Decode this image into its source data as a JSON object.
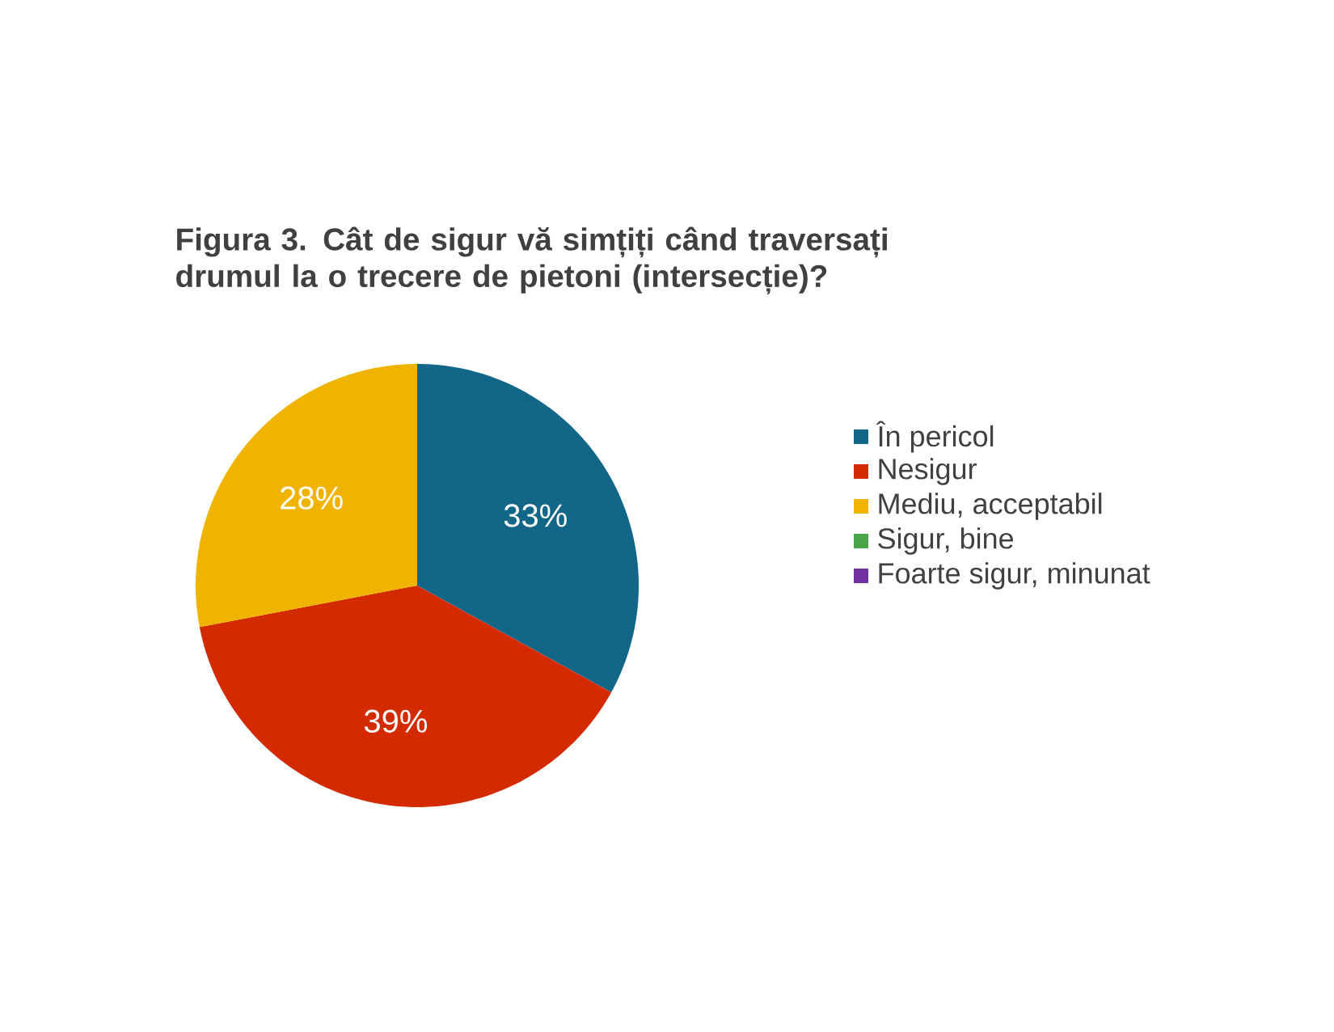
{
  "chart_data": {
    "type": "pie",
    "title": "Figura  3. Cât de sigur  vă simțiți  când traversați drumul  la  o trecere  de pietoni  (intersecție)?",
    "categories": [
      "În pericol",
      "Nesigur",
      "Mediu, acceptabil",
      "Sigur, bine",
      "Foarte sigur, minunat"
    ],
    "values": [
      33,
      39,
      28,
      0,
      0
    ],
    "colors": [
      "#126688",
      "#d42a00",
      "#f0b400",
      "#4aa54a",
      "#7030a0"
    ],
    "value_labels": [
      "33%",
      "39%",
      "28%",
      null,
      null
    ],
    "legend": "right"
  }
}
